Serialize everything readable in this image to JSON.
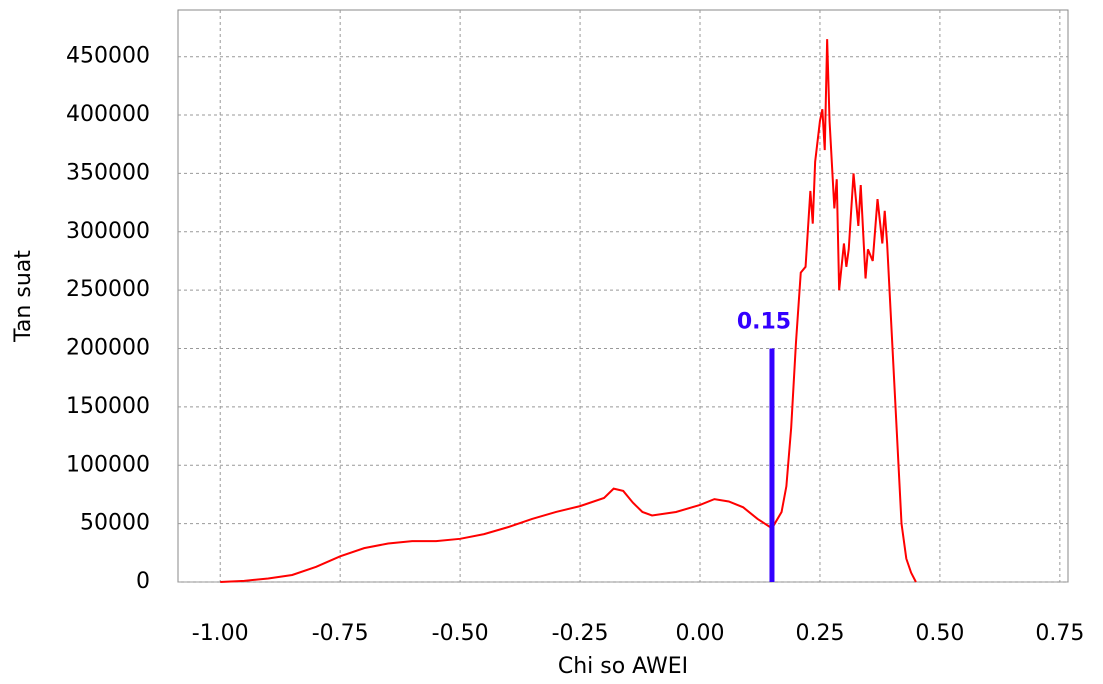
{
  "chart_data": {
    "type": "line",
    "xlabel": "Chi so AWEI",
    "ylabel": "Tan suat",
    "x": [
      -1.0,
      -0.95,
      -0.9,
      -0.85,
      -0.8,
      -0.75,
      -0.7,
      -0.65,
      -0.6,
      -0.55,
      -0.5,
      -0.45,
      -0.4,
      -0.35,
      -0.3,
      -0.25,
      -0.2,
      -0.18,
      -0.16,
      -0.14,
      -0.12,
      -0.1,
      -0.05,
      0.0,
      0.03,
      0.06,
      0.09,
      0.12,
      0.15,
      0.17,
      0.18,
      0.19,
      0.2,
      0.21,
      0.22,
      0.23,
      0.235,
      0.24,
      0.25,
      0.255,
      0.26,
      0.265,
      0.27,
      0.28,
      0.285,
      0.29,
      0.3,
      0.305,
      0.31,
      0.32,
      0.33,
      0.335,
      0.345,
      0.35,
      0.36,
      0.37,
      0.38,
      0.385,
      0.39,
      0.4,
      0.41,
      0.42,
      0.43,
      0.44,
      0.45
    ],
    "series": [
      {
        "color": "#ff0000",
        "values": [
          0,
          1000,
          3000,
          6000,
          13000,
          22000,
          29000,
          33000,
          35000,
          35000,
          37000,
          41000,
          47000,
          54000,
          60000,
          65000,
          72000,
          80000,
          78000,
          68000,
          60000,
          57000,
          60000,
          66000,
          71000,
          69000,
          64000,
          54000,
          46000,
          60000,
          82000,
          132000,
          205000,
          265000,
          270000,
          335000,
          307000,
          360000,
          395000,
          405000,
          370000,
          465000,
          395000,
          320000,
          345000,
          250000,
          290000,
          270000,
          285000,
          350000,
          305000,
          340000,
          260000,
          285000,
          275000,
          328000,
          290000,
          318000,
          290000,
          210000,
          130000,
          50000,
          20000,
          8000,
          0
        ]
      }
    ],
    "threshold": {
      "value": 0.15,
      "height": 200000,
      "color": "#3300ff"
    },
    "xlim": [
      -1.088,
      0.767
    ],
    "ylim": [
      0,
      490000
    ],
    "xticks": [
      {
        "value": -1.0,
        "label": "-1.00"
      },
      -0.75,
      {
        "value": -0.5,
        "label": "-0.50"
      },
      -0.25,
      {
        "value": 0,
        "label": "0.00"
      },
      0.25,
      {
        "value": 0.5,
        "label": "0.50"
      },
      0.75
    ],
    "yticks": [
      0,
      50000,
      100000,
      150000,
      200000,
      250000,
      300000,
      350000,
      400000,
      450000
    ],
    "grid": true
  }
}
